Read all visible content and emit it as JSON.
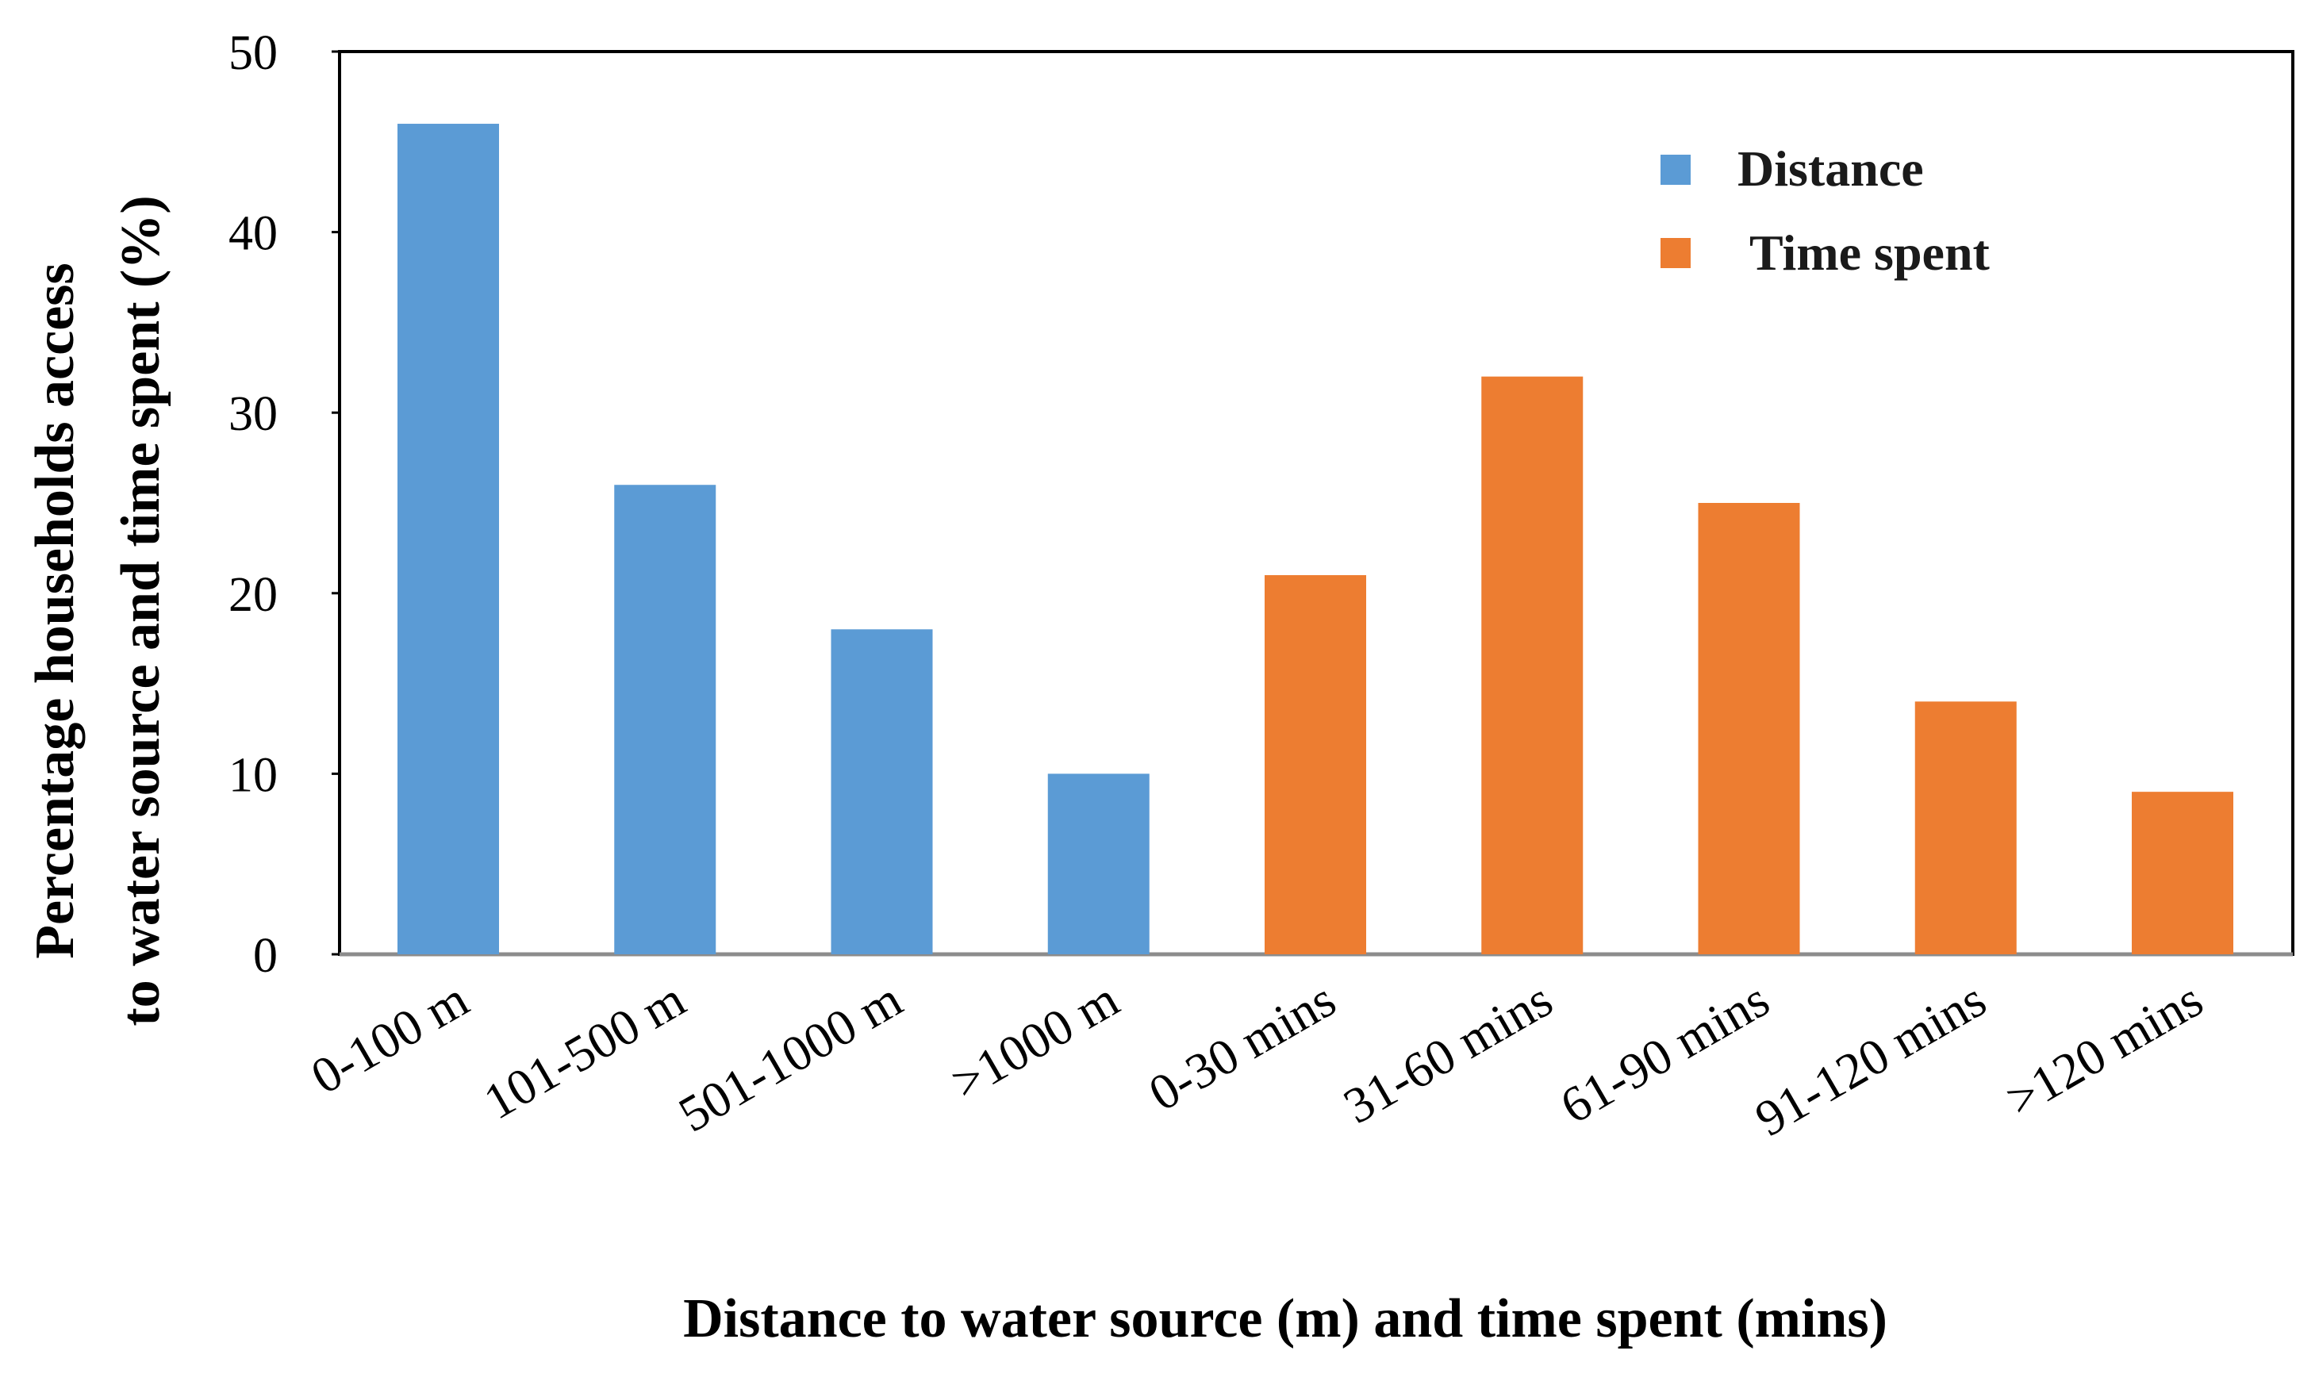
{
  "chart_data": {
    "type": "bar",
    "title": "",
    "xlabel": "Distance to water source (m) and time spent (mins)",
    "ylabel_lines": [
      "Percentage households access",
      "to water source and time spent (%)"
    ],
    "ylim": [
      0,
      50
    ],
    "yticks": [
      "0",
      "10",
      "20",
      "30",
      "40",
      "50"
    ],
    "categories": [
      "0-100 m",
      "101-500 m",
      "501-1000 m",
      ">1000 m",
      "0-30 mins",
      "31-60 mins",
      "61-90 mins",
      "91-120 mins",
      ">120 mins"
    ],
    "series": [
      {
        "name": "Distance",
        "color": "#5b9bd5",
        "values": [
          46,
          26,
          18,
          10,
          null,
          null,
          null,
          null,
          null
        ]
      },
      {
        "name": "Time spent",
        "color": "#ed7d31",
        "values": [
          null,
          null,
          null,
          null,
          21,
          32,
          25,
          14,
          9
        ]
      }
    ],
    "legend": {
      "position": "top-right",
      "entries": [
        "Distance",
        "Time spent"
      ]
    },
    "grid": false
  }
}
